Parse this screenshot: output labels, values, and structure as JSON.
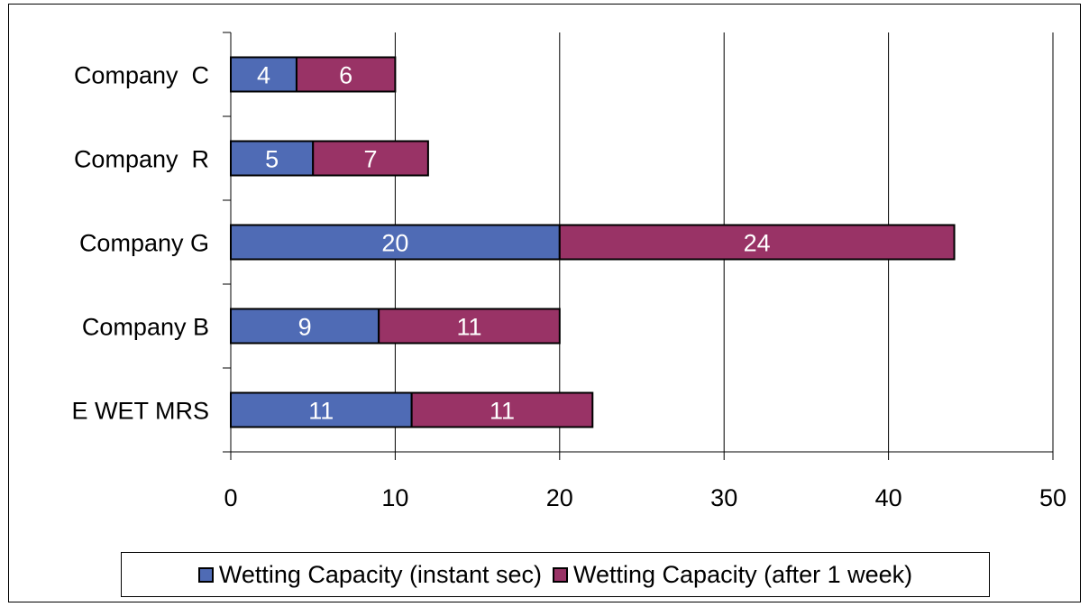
{
  "chart_data": {
    "type": "bar",
    "orientation": "horizontal",
    "stacked": true,
    "categories": [
      "Company  C",
      "Company  R",
      "Company G",
      "Company B",
      "E WET MRS"
    ],
    "series": [
      {
        "name": "Wetting Capacity (instant sec)",
        "values": [
          4,
          5,
          20,
          9,
          11
        ],
        "color": "#4F6BB5"
      },
      {
        "name": "Wetting Capacity (after 1 week)",
        "values": [
          6,
          7,
          24,
          11,
          11
        ],
        "color": "#993366"
      }
    ],
    "xlim": [
      0,
      50
    ],
    "xticks": [
      0,
      10,
      20,
      30,
      40,
      50
    ],
    "grid": true,
    "legend": "bottom",
    "data_label_color": "#ffffff"
  }
}
